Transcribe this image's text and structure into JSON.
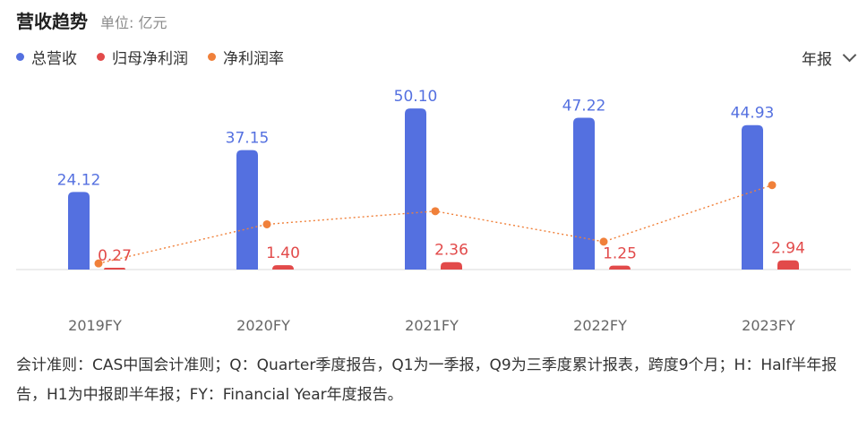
{
  "header": {
    "title": "营收趋势",
    "unit": "单位: 亿元"
  },
  "period_selector": {
    "label": "年报"
  },
  "colors": {
    "revenue": "#5470e0",
    "net_profit": "#e24a4a",
    "margin": "#f0803a",
    "axis": "#d9d9d9",
    "tick_text": "#666666"
  },
  "chart_data": {
    "type": "bar",
    "categories": [
      "2019FY",
      "2020FY",
      "2021FY",
      "2022FY",
      "2023FY"
    ],
    "series": [
      {
        "name": "总营收",
        "type": "bar",
        "values": [
          24.12,
          37.15,
          50.1,
          47.22,
          44.93
        ],
        "labels": [
          "24.12",
          "37.15",
          "50.10",
          "47.22",
          "44.93"
        ]
      },
      {
        "name": "归母净利润",
        "type": "bar",
        "values": [
          0.27,
          1.4,
          2.36,
          1.25,
          2.94
        ],
        "labels": [
          "0.27",
          "1.40",
          "2.36",
          "1.25",
          "2.94"
        ]
      },
      {
        "name": "净利润率",
        "type": "line",
        "values": [
          1.1,
          3.8,
          4.7,
          2.6,
          6.5
        ]
      }
    ],
    "legend_position": "top-left"
  },
  "footnote": "会计准则：CAS中国会计准则；Q：Quarter季度报告，Q1为一季报，Q9为三季度累计报表，跨度9个月；H：Half半年报告，H1为中报即半年报；FY：Financial Year年度报告。"
}
